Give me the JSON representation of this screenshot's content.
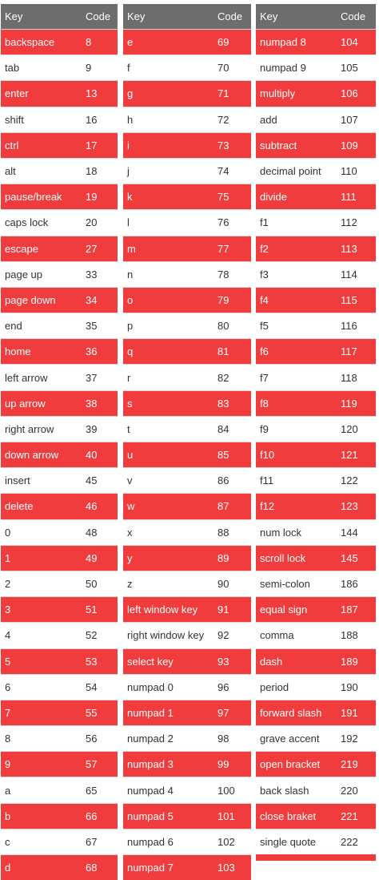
{
  "header": {
    "key": "Key",
    "code": "Code"
  },
  "colors": {
    "header_bg": "#6d6d6d",
    "row_red": "#f03c3c",
    "row_white": "#ffffff"
  },
  "tables": [
    {
      "rows": [
        {
          "key": "backspace",
          "code": "8"
        },
        {
          "key": "tab",
          "code": "9"
        },
        {
          "key": "enter",
          "code": "13"
        },
        {
          "key": "shift",
          "code": "16"
        },
        {
          "key": "ctrl",
          "code": "17"
        },
        {
          "key": "alt",
          "code": "18"
        },
        {
          "key": "pause/break",
          "code": "19"
        },
        {
          "key": "caps lock",
          "code": "20"
        },
        {
          "key": "escape",
          "code": "27"
        },
        {
          "key": "page up",
          "code": "33"
        },
        {
          "key": "page down",
          "code": "34"
        },
        {
          "key": "end",
          "code": "35"
        },
        {
          "key": "home",
          "code": "36"
        },
        {
          "key": "left arrow",
          "code": "37"
        },
        {
          "key": "up arrow",
          "code": "38"
        },
        {
          "key": "right arrow",
          "code": "39"
        },
        {
          "key": "down arrow",
          "code": "40"
        },
        {
          "key": "insert",
          "code": "45"
        },
        {
          "key": "delete",
          "code": "46"
        },
        {
          "key": "0",
          "code": "48"
        },
        {
          "key": "1",
          "code": "49"
        },
        {
          "key": "2",
          "code": "50"
        },
        {
          "key": "3",
          "code": "51"
        },
        {
          "key": "4",
          "code": "52"
        },
        {
          "key": "5",
          "code": "53"
        },
        {
          "key": "6",
          "code": "54"
        },
        {
          "key": "7",
          "code": "55"
        },
        {
          "key": "8",
          "code": "56"
        },
        {
          "key": "9",
          "code": "57"
        },
        {
          "key": "a",
          "code": "65"
        },
        {
          "key": "b",
          "code": "66"
        },
        {
          "key": "c",
          "code": "67"
        },
        {
          "key": "d",
          "code": "68"
        }
      ]
    },
    {
      "rows": [
        {
          "key": "e",
          "code": "69"
        },
        {
          "key": "f",
          "code": "70"
        },
        {
          "key": "g",
          "code": "71"
        },
        {
          "key": "h",
          "code": "72"
        },
        {
          "key": "i",
          "code": "73"
        },
        {
          "key": "j",
          "code": "74"
        },
        {
          "key": "k",
          "code": "75"
        },
        {
          "key": "l",
          "code": "76"
        },
        {
          "key": "m",
          "code": "77"
        },
        {
          "key": "n",
          "code": "78"
        },
        {
          "key": "o",
          "code": "79"
        },
        {
          "key": "p",
          "code": "80"
        },
        {
          "key": "q",
          "code": "81"
        },
        {
          "key": "r",
          "code": "82"
        },
        {
          "key": "s",
          "code": "83"
        },
        {
          "key": "t",
          "code": "84"
        },
        {
          "key": "u",
          "code": "85"
        },
        {
          "key": "v",
          "code": "86"
        },
        {
          "key": "w",
          "code": "87"
        },
        {
          "key": "x",
          "code": "88"
        },
        {
          "key": "y",
          "code": "89"
        },
        {
          "key": "z",
          "code": "90"
        },
        {
          "key": "left window key",
          "code": "91"
        },
        {
          "key": "right window key",
          "code": "92"
        },
        {
          "key": "select key",
          "code": "93"
        },
        {
          "key": "numpad 0",
          "code": "96"
        },
        {
          "key": "numpad 1",
          "code": "97"
        },
        {
          "key": "numpad 2",
          "code": "98"
        },
        {
          "key": "numpad 3",
          "code": "99"
        },
        {
          "key": "numpad 4",
          "code": "100"
        },
        {
          "key": "numpad 5",
          "code": "101"
        },
        {
          "key": "numpad 6",
          "code": "102"
        },
        {
          "key": "numpad 7",
          "code": "103"
        }
      ]
    },
    {
      "rows": [
        {
          "key": "numpad 8",
          "code": "104"
        },
        {
          "key": "numpad 9",
          "code": "105"
        },
        {
          "key": "multiply",
          "code": "106"
        },
        {
          "key": "add",
          "code": "107"
        },
        {
          "key": "subtract",
          "code": "109"
        },
        {
          "key": "decimal point",
          "code": "110"
        },
        {
          "key": "divide",
          "code": "111"
        },
        {
          "key": "f1",
          "code": "112"
        },
        {
          "key": "f2",
          "code": "113"
        },
        {
          "key": "f3",
          "code": "114"
        },
        {
          "key": "f4",
          "code": "115"
        },
        {
          "key": "f5",
          "code": "116"
        },
        {
          "key": "f6",
          "code": "117"
        },
        {
          "key": "f7",
          "code": "118"
        },
        {
          "key": "f8",
          "code": "119"
        },
        {
          "key": "f9",
          "code": "120"
        },
        {
          "key": "f10",
          "code": "121"
        },
        {
          "key": "f11",
          "code": "122"
        },
        {
          "key": "f12",
          "code": "123"
        },
        {
          "key": "num lock",
          "code": "144"
        },
        {
          "key": "scroll lock",
          "code": "145"
        },
        {
          "key": "semi-colon",
          "code": "186"
        },
        {
          "key": "equal sign",
          "code": "187"
        },
        {
          "key": "comma",
          "code": "188"
        },
        {
          "key": "dash",
          "code": "189"
        },
        {
          "key": "period",
          "code": "190"
        },
        {
          "key": "forward slash",
          "code": "191"
        },
        {
          "key": "grave accent",
          "code": "192"
        },
        {
          "key": "open bracket",
          "code": "219"
        },
        {
          "key": "back slash",
          "code": "220"
        },
        {
          "key": "close braket",
          "code": "221"
        },
        {
          "key": "single quote",
          "code": "222"
        }
      ]
    }
  ]
}
